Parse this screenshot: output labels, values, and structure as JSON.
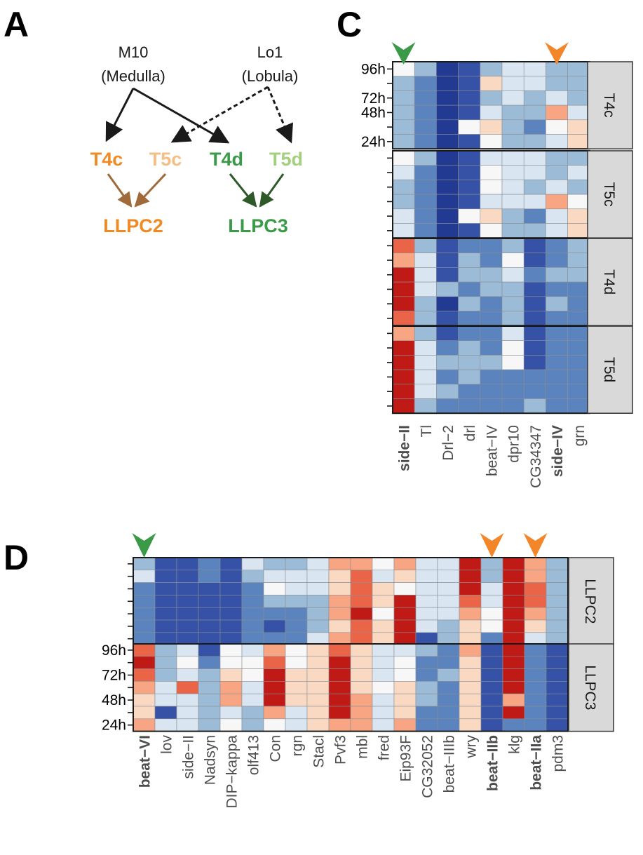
{
  "panels": {
    "A": "A",
    "C": "C",
    "D": "D"
  },
  "diagram": {
    "sources": [
      {
        "id": "M10",
        "line1": "M10",
        "line2": "(Medulla)"
      },
      {
        "id": "Lo1",
        "line1": "Lo1",
        "line2": "(Lobula)"
      }
    ],
    "cells": [
      {
        "id": "T4c",
        "label": "T4c",
        "color": "#F08A24"
      },
      {
        "id": "T5c",
        "label": "T5c",
        "color": "#F5BE84"
      },
      {
        "id": "T4d",
        "label": "T4d",
        "color": "#3A9A48"
      },
      {
        "id": "T5d",
        "label": "T5d",
        "color": "#A3CF7E"
      }
    ],
    "targets": [
      {
        "id": "LLPC2",
        "label": "LLPC2",
        "color": "#F08A24"
      },
      {
        "id": "LLPC3",
        "label": "LLPC3",
        "color": "#3A9A48"
      }
    ],
    "edges": [
      {
        "from": "M10",
        "to": "T4c",
        "style": "solid",
        "color": "#1a1a1a"
      },
      {
        "from": "M10",
        "to": "T4d",
        "style": "solid",
        "color": "#1a1a1a"
      },
      {
        "from": "Lo1",
        "to": "T5c",
        "style": "dashed",
        "color": "#1a1a1a"
      },
      {
        "from": "Lo1",
        "to": "T5d",
        "style": "dashed",
        "color": "#1a1a1a"
      },
      {
        "from": "T4c",
        "to": "LLPC2",
        "style": "solid",
        "color": "#A06A3A"
      },
      {
        "from": "T5c",
        "to": "LLPC2",
        "style": "solid",
        "color": "#A06A3A"
      },
      {
        "from": "T4d",
        "to": "LLPC3",
        "style": "solid",
        "color": "#2E5A2A"
      },
      {
        "from": "T5d",
        "to": "LLPC3",
        "style": "solid",
        "color": "#2E5A2A"
      }
    ]
  },
  "colors": {
    "green": "#3A9A48",
    "orange": "#F4862A"
  },
  "scale": {
    "stops": [
      "#233A93",
      "#3552A6",
      "#5B83BD",
      "#9BBBD7",
      "#D9E6F1",
      "#F7F7F7",
      "#FAD9C2",
      "#F7A582",
      "#EA6447",
      "#C01A16"
    ]
  },
  "chart_data": [
    {
      "id": "C",
      "type": "heatmap",
      "genes": [
        "side-II",
        "Tl",
        "Drl-2",
        "drl",
        "beat-IV",
        "dpr10",
        "CG34347",
        "side-IV",
        "grn"
      ],
      "highlight": [
        {
          "gene": 0,
          "color": "green"
        },
        {
          "gene": 7,
          "color": "orange"
        }
      ],
      "time_labels": [
        "96h",
        "72h",
        "48h",
        "24h"
      ],
      "groups": [
        {
          "label": "T4c",
          "rows": [
            [
              5,
              3,
              0,
              1,
              3,
              4,
              4,
              3,
              3
            ],
            [
              3,
              2,
              0,
              1,
              6,
              4,
              4,
              3,
              3
            ],
            [
              3,
              2,
              0,
              1,
              3,
              4,
              3,
              4,
              3
            ],
            [
              3,
              2,
              0,
              1,
              4,
              3,
              3,
              7,
              4
            ],
            [
              3,
              2,
              0,
              5,
              6,
              3,
              2,
              5,
              6
            ],
            [
              3,
              2,
              0,
              1,
              5,
              3,
              3,
              4,
              6
            ]
          ]
        },
        {
          "label": "T5c",
          "rows": [
            [
              5,
              3,
              0,
              1,
              4,
              4,
              4,
              3,
              3
            ],
            [
              4,
              2,
              0,
              1,
              5,
              4,
              4,
              3,
              4
            ],
            [
              3,
              2,
              0,
              1,
              5,
              4,
              3,
              4,
              3
            ],
            [
              3,
              2,
              0,
              1,
              4,
              4,
              4,
              7,
              5
            ],
            [
              4,
              2,
              0,
              5,
              6,
              3,
              2,
              4,
              6
            ],
            [
              4,
              2,
              0,
              1,
              5,
              3,
              3,
              4,
              6
            ]
          ]
        },
        {
          "label": "T4d",
          "rows": [
            [
              8,
              3,
              1,
              2,
              2,
              3,
              1,
              2,
              3
            ],
            [
              7,
              4,
              1,
              3,
              2,
              5,
              1,
              2,
              3
            ],
            [
              9,
              4,
              1,
              3,
              3,
              4,
              2,
              3,
              3
            ],
            [
              9,
              4,
              3,
              2,
              3,
              3,
              1,
              2,
              2
            ],
            [
              9,
              3,
              0,
              3,
              2,
              3,
              1,
              3,
              2
            ],
            [
              8,
              3,
              1,
              2,
              2,
              3,
              1,
              2,
              2
            ]
          ]
        },
        {
          "label": "T5d",
          "rows": [
            [
              7,
              3,
              1,
              2,
              2,
              4,
              1,
              2,
              2
            ],
            [
              9,
              4,
              2,
              3,
              2,
              5,
              1,
              2,
              2
            ],
            [
              9,
              4,
              3,
              3,
              3,
              5,
              1,
              2,
              2
            ],
            [
              9,
              4,
              2,
              3,
              2,
              2,
              2,
              2,
              2
            ],
            [
              9,
              4,
              3,
              2,
              2,
              2,
              2,
              2,
              2
            ],
            [
              9,
              3,
              2,
              2,
              2,
              2,
              3,
              2,
              2
            ]
          ]
        }
      ]
    },
    {
      "id": "D",
      "type": "heatmap",
      "genes": [
        "beat-VI",
        "lov",
        "side-II",
        "Nadsyn",
        "DIP-kappa",
        "olf413",
        "Con",
        "rgn",
        "Stacl",
        "Pvf3",
        "mbl",
        "fred",
        "Eip93F",
        "CG32052",
        "beat-IIIb",
        "wry",
        "beat-IIb",
        "klg",
        "beat-IIa",
        "pdm3"
      ],
      "highlight": [
        {
          "gene": 0,
          "color": "green"
        },
        {
          "gene": 16,
          "color": "orange"
        },
        {
          "gene": 18,
          "color": "orange"
        }
      ],
      "time_labels": [
        "96h",
        "72h",
        "48h",
        "24h"
      ],
      "groups": [
        {
          "label": "LLPC2",
          "rows": [
            [
              3,
              1,
              1,
              2,
              1,
              4,
              3,
              3,
              4,
              7,
              7,
              5,
              7,
              4,
              4,
              9,
              3,
              9,
              7,
              3
            ],
            [
              4,
              1,
              1,
              2,
              1,
              3,
              4,
              4,
              4,
              6,
              8,
              4,
              6,
              4,
              4,
              9,
              3,
              9,
              7,
              3
            ],
            [
              2,
              1,
              1,
              1,
              1,
              2,
              5,
              4,
              4,
              6,
              8,
              6,
              5,
              4,
              4,
              9,
              4,
              9,
              8,
              3
            ],
            [
              2,
              1,
              1,
              1,
              1,
              2,
              3,
              3,
              3,
              7,
              8,
              6,
              9,
              4,
              4,
              8,
              4,
              9,
              8,
              3
            ],
            [
              2,
              1,
              1,
              1,
              1,
              2,
              2,
              2,
              3,
              7,
              9,
              5,
              9,
              4,
              4,
              7,
              5,
              9,
              7,
              3
            ],
            [
              2,
              1,
              1,
              1,
              1,
              2,
              1,
              2,
              3,
              6,
              8,
              6,
              9,
              4,
              3,
              6,
              5,
              9,
              6,
              3
            ],
            [
              2,
              1,
              1,
              1,
              1,
              2,
              2,
              2,
              4,
              7,
              8,
              6,
              9,
              1,
              3,
              6,
              2,
              9,
              4,
              3
            ]
          ]
        },
        {
          "label": "LLPC3",
          "rows": [
            [
              8,
              3,
              4,
              1,
              5,
              4,
              7,
              5,
              6,
              8,
              6,
              4,
              4,
              3,
              2,
              7,
              1,
              9,
              2,
              1
            ],
            [
              9,
              3,
              5,
              2,
              5,
              5,
              8,
              5,
              6,
              9,
              6,
              4,
              5,
              2,
              2,
              6,
              1,
              9,
              2,
              1
            ],
            [
              8,
              3,
              4,
              3,
              6,
              5,
              9,
              6,
              6,
              9,
              6,
              4,
              5,
              2,
              3,
              6,
              1,
              9,
              2,
              1
            ],
            [
              7,
              4,
              8,
              3,
              7,
              4,
              9,
              6,
              6,
              9,
              6,
              5,
              6,
              3,
              2,
              6,
              1,
              9,
              2,
              1
            ],
            [
              6,
              4,
              4,
              3,
              7,
              4,
              9,
              6,
              6,
              9,
              7,
              4,
              6,
              3,
              2,
              6,
              1,
              7,
              2,
              1
            ],
            [
              6,
              1,
              4,
              3,
              4,
              3,
              7,
              4,
              6,
              9,
              7,
              4,
              6,
              2,
              2,
              6,
              1,
              9,
              2,
              1
            ],
            [
              7,
              4,
              4,
              3,
              5,
              3,
              5,
              4,
              6,
              7,
              7,
              4,
              7,
              2,
              2,
              6,
              1,
              2,
              2,
              1
            ]
          ]
        }
      ]
    }
  ]
}
